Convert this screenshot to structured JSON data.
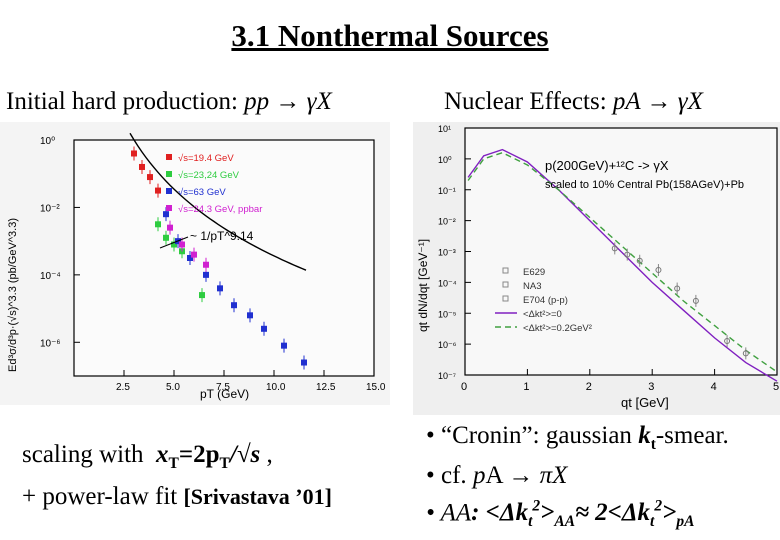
{
  "slide": {
    "title": "3.1 Nonthermal Sources",
    "left_heading": {
      "label": "Initial hard production:",
      "reaction": "pp → γX"
    },
    "right_heading": {
      "label": "Nuclear Effects:",
      "reaction": "pA → γX"
    },
    "left_caption": {
      "line1_prefix": "scaling with",
      "xT_var": "x",
      "xT_sub": "T",
      "xT_mid": "=2p",
      "pT_sub": "T",
      "sqrt_s": "/√s",
      "line1_suffix": ",",
      "line2_prefix": "+ power-law fit",
      "line2_ref": "[Srivastava ’01]"
    },
    "right_bullets": [
      {
        "text": "• “Cronin”: gaussian ",
        "bold": "k",
        "sub": "t",
        "rest": "-smear."
      },
      {
        "text": "• cf.  ",
        "italic": "p",
        "mid": "A → ",
        "italic2": "πX"
      },
      {
        "text": "• ",
        "italic": "AA",
        "rest": ":  <Δk",
        "sub": "t",
        "sup": "2",
        "rest2": ">",
        "sub2": "AA",
        "rest3": "≈ 2<Δk",
        "sub3": "t",
        "sup3": "2",
        "rest4": ">",
        "sub4": "pA"
      }
    ]
  },
  "chart_data": [
    {
      "type": "scatter",
      "title": "",
      "xlabel": "pT (GeV)",
      "ylabel": "Ed³σ/d³p·(√s)^3.3 (pb/GeV^3.3)",
      "xlim": [
        0,
        15
      ],
      "ylim_log10": [
        -7,
        0
      ],
      "x_ticks": [
        "2.5",
        "5.0",
        "7.5",
        "10.0",
        "12.5",
        "15.0"
      ],
      "y_ticks": [
        "10⁰",
        "10⁻²",
        "10⁻⁴",
        "10⁻⁶"
      ],
      "annotation": "~ 1/pT^9.14",
      "legend_position": "top-right",
      "series": [
        {
          "name": "√s=19.4 GeV",
          "color": "#e02020",
          "points": [
            [
              3.0,
              -0.4
            ],
            [
              3.4,
              -0.8
            ],
            [
              3.8,
              -1.1
            ],
            [
              4.2,
              -1.5
            ]
          ]
        },
        {
          "name": "√s=23,24 GeV",
          "color": "#2ecc40",
          "points": [
            [
              4.2,
              -2.5
            ],
            [
              4.6,
              -2.9
            ],
            [
              5.0,
              -3.1
            ],
            [
              5.4,
              -3.3
            ],
            [
              6.4,
              -4.6
            ]
          ]
        },
        {
          "name": "√s=63 GeV",
          "color": "#2030d0",
          "points": [
            [
              4.6,
              -2.2
            ],
            [
              5.2,
              -3.0
            ],
            [
              5.8,
              -3.5
            ],
            [
              6.6,
              -4.0
            ],
            [
              7.3,
              -4.4
            ],
            [
              8.0,
              -4.9
            ],
            [
              8.8,
              -5.2
            ],
            [
              9.5,
              -5.6
            ],
            [
              10.5,
              -6.1
            ],
            [
              11.5,
              -6.6
            ]
          ]
        },
        {
          "name": "√s=24.3 GeV, ppbar",
          "color": "#d020d0",
          "points": [
            [
              4.8,
              -2.6
            ],
            [
              5.4,
              -3.1
            ],
            [
              6.0,
              -3.4
            ],
            [
              6.6,
              -3.7
            ]
          ]
        }
      ]
    },
    {
      "type": "line",
      "title": "p(200GeV)+¹²C -> γX",
      "subtitle": "scaled to 10% Central Pb(158AGeV)+Pb",
      "xlabel": "qt [GeV]",
      "ylabel": "qt dN/dqt [GeV⁻¹]",
      "xlim": [
        0,
        5
      ],
      "ylim_log10": [
        -7,
        1
      ],
      "x_ticks": [
        "0",
        "1",
        "2",
        "3",
        "4",
        "5"
      ],
      "y_ticks": [
        "10¹",
        "10⁰",
        "10⁻¹",
        "10⁻²",
        "10⁻³",
        "10⁻⁴",
        "10⁻⁵",
        "10⁻⁶",
        "10⁻⁷"
      ],
      "legend_position": "bottom-left",
      "legend": [
        "E629",
        "NA3",
        "E704 (p-p)",
        "<Δkt²>=0",
        "<Δkt²>=0.2GeV²"
      ],
      "series": [
        {
          "name": "<Δkt²>=0",
          "color": "#8020c0",
          "x": [
            0.05,
            0.3,
            0.6,
            1.0,
            1.5,
            2.0,
            2.5,
            3.0,
            3.5,
            4.0,
            4.5,
            5.0
          ],
          "y_log10": [
            -0.6,
            0.1,
            0.3,
            -0.1,
            -1.0,
            -2.0,
            -3.0,
            -4.0,
            -4.9,
            -5.8,
            -6.6,
            -7.2
          ]
        },
        {
          "name": "<Δkt²>=0.2GeV²",
          "color": "#40a040",
          "x": [
            0.05,
            0.3,
            0.6,
            1.0,
            1.5,
            2.0,
            2.5,
            3.0,
            3.5,
            4.0,
            4.5,
            5.0
          ],
          "y_log10": [
            -0.7,
            0.0,
            0.2,
            -0.2,
            -1.0,
            -1.9,
            -2.8,
            -3.7,
            -4.6,
            -5.4,
            -6.2,
            -6.9
          ]
        }
      ]
    }
  ]
}
